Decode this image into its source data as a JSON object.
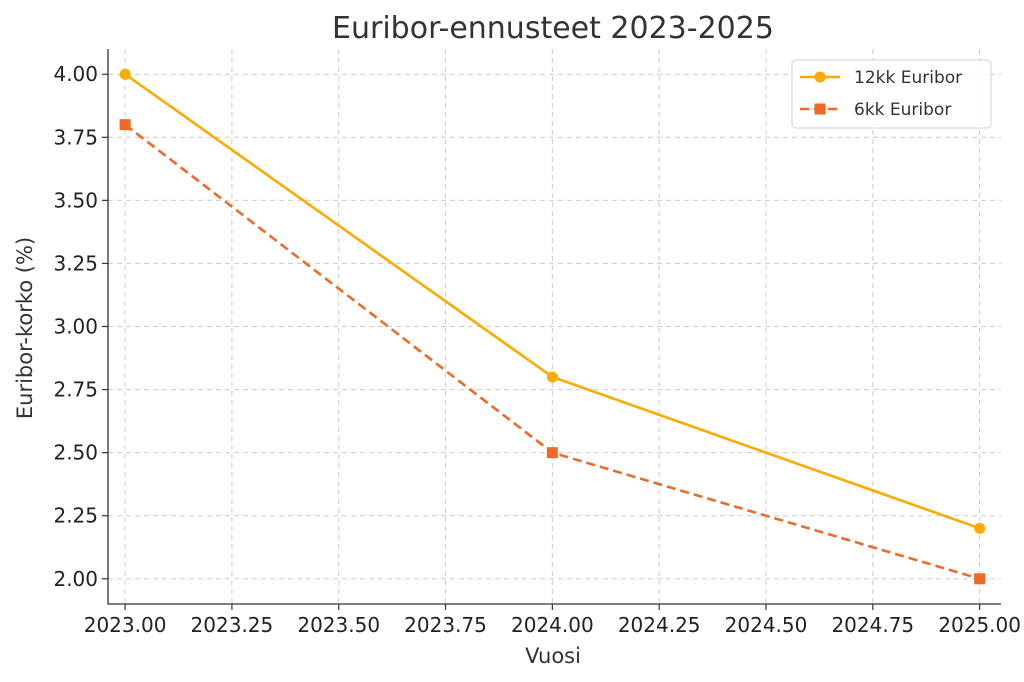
{
  "chart_data": {
    "type": "line",
    "title": "Euribor-ennusteet 2023-2025",
    "xlabel": "Vuosi",
    "ylabel": "Euribor-korko (%)",
    "xlim": [
      2022.96,
      2025.05
    ],
    "ylim": [
      1.9,
      4.1
    ],
    "x_ticks": [
      2023.0,
      2023.25,
      2023.5,
      2023.75,
      2024.0,
      2024.25,
      2024.5,
      2024.75,
      2025.0
    ],
    "x_tick_labels": [
      "2023.00",
      "2023.25",
      "2023.50",
      "2023.75",
      "2024.00",
      "2024.25",
      "2024.50",
      "2024.75",
      "2025.00"
    ],
    "y_ticks": [
      2.0,
      2.25,
      2.5,
      2.75,
      3.0,
      3.25,
      3.5,
      3.75,
      4.0
    ],
    "y_tick_labels": [
      "2.00",
      "2.25",
      "2.50",
      "2.75",
      "3.00",
      "3.25",
      "3.50",
      "3.75",
      "4.00"
    ],
    "grid": true,
    "legend_position": "top-right",
    "x": [
      2023,
      2024,
      2025
    ],
    "series": [
      {
        "name": "12kk Euribor",
        "values": [
          4.0,
          2.8,
          2.2
        ],
        "color": "#FFAA00",
        "marker": "circle",
        "line_style": "solid"
      },
      {
        "name": "6kk Euribor",
        "values": [
          3.8,
          2.5,
          2.0
        ],
        "color": "#F06A26",
        "marker": "square",
        "line_style": "dashed"
      }
    ]
  }
}
